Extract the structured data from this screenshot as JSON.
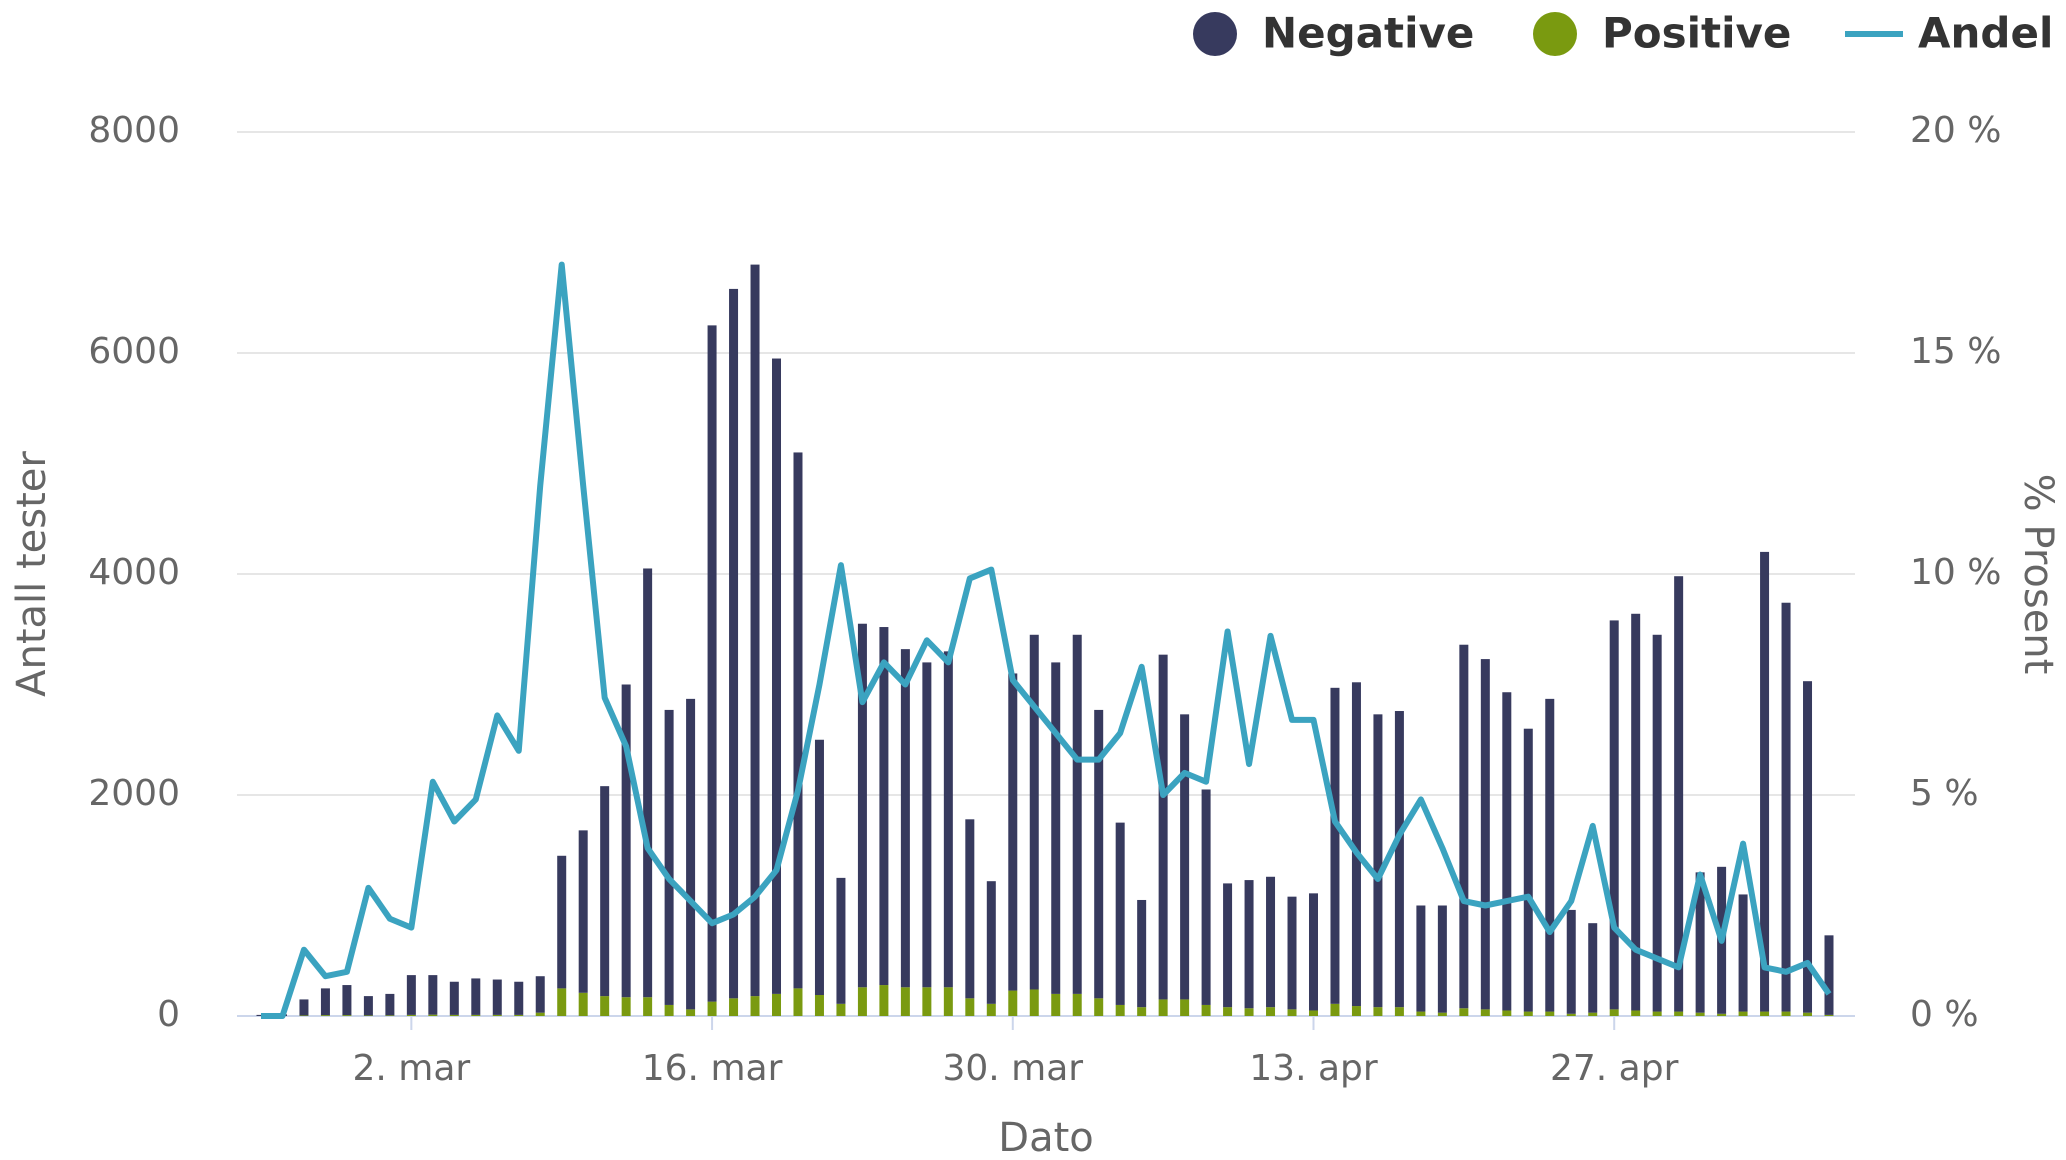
{
  "chart_data": {
    "type": "bar",
    "x_label": "Dato",
    "y_label": "Antall tester",
    "y2_label": "% Prosent",
    "categories": [
      null,
      null,
      null,
      null,
      null,
      null,
      null,
      "2. mar",
      null,
      null,
      null,
      null,
      null,
      null,
      null,
      null,
      null,
      null,
      null,
      null,
      null,
      "16. mar",
      null,
      null,
      null,
      null,
      null,
      null,
      null,
      null,
      null,
      null,
      null,
      null,
      null,
      "30. mar",
      null,
      null,
      null,
      null,
      null,
      null,
      null,
      null,
      null,
      null,
      null,
      null,
      null,
      "13. apr",
      null,
      null,
      null,
      null,
      null,
      null,
      null,
      null,
      null,
      null,
      null,
      null,
      null,
      "27. apr",
      null,
      null,
      null,
      null,
      null,
      null,
      null,
      null,
      null,
      null
    ],
    "series": [
      {
        "name": "Negative",
        "color": "#373a5e",
        "stack": true,
        "values": [
          10,
          15,
          145,
          242,
          272,
          175,
          194,
          360,
          358,
          300,
          330,
          320,
          300,
          330,
          1200,
          1470,
          1900,
          2830,
          3880,
          2670,
          2810,
          6120,
          6420,
          6620,
          5750,
          4850,
          2310,
          1140,
          3290,
          3240,
          3060,
          2940,
          3040,
          1620,
          1110,
          2870,
          3210,
          3000,
          3250,
          2610,
          1650,
          970,
          3120,
          2580,
          1950,
          1120,
          1160,
          1180,
          1020,
          1060,
          2860,
          2930,
          2650,
          2680,
          960,
          970,
          3290,
          3170,
          2880,
          2560,
          2830,
          940,
          810,
          3520,
          3590,
          3410,
          3940,
          1270,
          1330,
          1060,
          4160,
          3700,
          3000,
          720
        ]
      },
      {
        "name": "Positive",
        "color": "#7a9a10",
        "stack": true,
        "values": [
          0,
          0,
          5,
          8,
          8,
          5,
          6,
          10,
          12,
          10,
          10,
          10,
          10,
          30,
          250,
          210,
          180,
          170,
          170,
          100,
          60,
          130,
          160,
          180,
          200,
          250,
          190,
          110,
          260,
          280,
          260,
          260,
          260,
          160,
          110,
          230,
          240,
          200,
          200,
          160,
          100,
          80,
          150,
          150,
          100,
          80,
          70,
          80,
          60,
          50,
          110,
          90,
          80,
          80,
          40,
          30,
          70,
          60,
          50,
          40,
          40,
          20,
          30,
          60,
          50,
          40,
          40,
          30,
          20,
          40,
          40,
          40,
          30,
          10
        ]
      },
      {
        "name": "Andel",
        "color": "#3ba3c0",
        "type": "line",
        "axis": "y2",
        "values": [
          0,
          0,
          1.5,
          0.9,
          1,
          2.9,
          2.2,
          2,
          5.3,
          4.4,
          4.9,
          6.8,
          6,
          12,
          17,
          12,
          7.2,
          6.1,
          3.8,
          3.1,
          2.6,
          2.1,
          2.3,
          2.7,
          3.3,
          5.1,
          7.5,
          10.2,
          7.1,
          8,
          7.5,
          8.5,
          8,
          9.9,
          10.1,
          7.6,
          7,
          6.4,
          5.8,
          5.8,
          6.4,
          7.9,
          5,
          5.5,
          5.3,
          8.7,
          5.7,
          8.6,
          6.7,
          6.7,
          4.4,
          3.7,
          3.1,
          4.1,
          4.9,
          3.8,
          2.6,
          2.5,
          2.6,
          2.7,
          1.9,
          2.6,
          4.3,
          2,
          1.5,
          1.3,
          1.1,
          3.2,
          1.7,
          3.9,
          1.1,
          1,
          1.2,
          0.5
        ]
      }
    ],
    "ylim": [
      0,
      8000
    ],
    "yticks": [
      0,
      2000,
      4000,
      6000,
      8000
    ],
    "y2lim": [
      0,
      20
    ],
    "y2ticks": [
      {
        "value": 0,
        "label": "0 %"
      },
      {
        "value": 5,
        "label": "5 %"
      },
      {
        "value": 10,
        "label": "10 %"
      },
      {
        "value": 15,
        "label": "15 %"
      },
      {
        "value": 20,
        "label": "20 %"
      }
    ],
    "grid": true,
    "legend": "top-right"
  }
}
